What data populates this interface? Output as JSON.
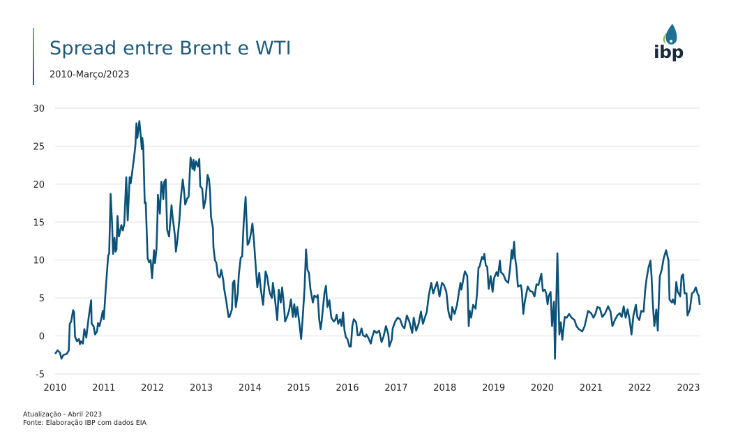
{
  "header": {
    "title": "Spread entre Brent e WTI",
    "subtitle": "2010-Março/2023",
    "logo_text": "ibp"
  },
  "footer": {
    "update": "Atualização - Abril 2023",
    "source": "Fonte: Elaboração IBP com dados EIA"
  },
  "colors": {
    "line": "#0b5178",
    "title": "#1f5a7a",
    "accent_top": "#7dbb42",
    "grid": "#dddddd"
  },
  "chart_data": {
    "type": "line",
    "title": "Spread entre Brent e WTI",
    "subtitle": "2010-Março/2023",
    "xlabel": "",
    "ylabel": "",
    "xlim": [
      2010,
      2023.25
    ],
    "ylim": [
      -5,
      30
    ],
    "grid": true,
    "x_ticks": [
      "2010",
      "2011",
      "2012",
      "2013",
      "2014",
      "2015",
      "2016",
      "2017",
      "2018",
      "2019",
      "2020",
      "2021",
      "2022",
      "2023"
    ],
    "y_ticks": [
      "-5",
      "0",
      "5",
      "10",
      "15",
      "20",
      "25",
      "30"
    ],
    "series": [
      {
        "x": [
          2010.0,
          2010.05,
          2010.1,
          2010.13,
          2010.17,
          2010.24,
          2010.28,
          2010.3,
          2010.33,
          2010.37,
          2010.39,
          2010.41,
          2010.45,
          2010.49,
          2010.51,
          2010.53,
          2010.57,
          2010.6,
          2010.64,
          2010.69,
          2010.74,
          2010.75,
          2010.79,
          2010.82,
          2010.86,
          2010.88,
          2010.91,
          2010.94,
          2010.98,
          2011.0,
          2011.04,
          2011.09,
          2011.11,
          2011.14,
          2011.17,
          2011.19,
          2011.22,
          2011.24,
          2011.26,
          2011.28,
          2011.31,
          2011.36,
          2011.39,
          2011.42,
          2011.46,
          2011.49,
          2011.53,
          2011.55,
          2011.57,
          2011.62,
          2011.65,
          2011.67,
          2011.69,
          2011.73,
          2011.76,
          2011.78,
          2011.79,
          2011.81,
          2011.84,
          2011.86,
          2011.9,
          2011.93,
          2011.96,
          2011.99,
          2012.03,
          2012.05,
          2012.08,
          2012.1,
          2012.11,
          2012.15,
          2012.18,
          2012.2,
          2012.22,
          2012.24,
          2012.27,
          2012.3,
          2012.34,
          2012.39,
          2012.41,
          2012.46,
          2012.48,
          2012.51,
          2012.55,
          2012.58,
          2012.62,
          2012.65,
          2012.67,
          2012.71,
          2012.74,
          2012.78,
          2012.82,
          2012.84,
          2012.86,
          2012.89,
          2012.93,
          2012.96,
          2012.98,
          2013.02,
          2013.05,
          2013.09,
          2013.13,
          2013.16,
          2013.18,
          2013.2,
          2013.24,
          2013.25,
          2013.28,
          2013.31,
          2013.34,
          2013.38,
          2013.41,
          2013.45,
          2013.47,
          2013.51,
          2013.56,
          2013.58,
          2013.63,
          2013.65,
          2013.68,
          2013.71,
          2013.75,
          2013.77,
          2013.81,
          2013.84,
          2013.87,
          2013.91,
          2013.95,
          2013.98,
          2014.01,
          2014.05,
          2014.08,
          2014.13,
          2014.15,
          2014.19,
          2014.22,
          2014.27,
          2014.32,
          2014.35,
          2014.39,
          2014.41,
          2014.45,
          2014.47,
          2014.51,
          2014.56,
          2014.59,
          2014.63,
          2014.66,
          2014.7,
          2014.72,
          2014.76,
          2014.8,
          2014.84,
          2014.88,
          2014.91,
          2014.94,
          2014.97,
          2015.01,
          2015.05,
          2015.08,
          2015.12,
          2015.15,
          2015.18,
          2015.21,
          2015.24,
          2015.29,
          2015.32,
          2015.37,
          2015.39,
          2015.42,
          2015.45,
          2015.47,
          2015.53,
          2015.56,
          2015.59,
          2015.63,
          2015.67,
          2015.72,
          2015.75,
          2015.78,
          2015.81,
          2015.85,
          2015.88,
          2015.91,
          2015.94,
          2015.97,
          2016.0,
          2016.04,
          2016.07,
          2016.1,
          2016.13,
          2016.18,
          2016.21,
          2016.25,
          2016.29,
          2016.32,
          2016.37,
          2016.39,
          2016.44,
          2016.48,
          2016.51,
          2016.55,
          2016.6,
          2016.65,
          2016.7,
          2016.74,
          2016.79,
          2016.84,
          2016.86,
          2016.91,
          2016.93,
          2016.98,
          2017.03,
          2017.08,
          2017.13,
          2017.17,
          2017.22,
          2017.27,
          2017.33,
          2017.36,
          2017.41,
          2017.46,
          2017.51,
          2017.55,
          2017.63,
          2017.67,
          2017.72,
          2017.76,
          2017.79,
          2017.84,
          2017.89,
          2017.94,
          2017.98,
          2018.03,
          2018.07,
          2018.1,
          2018.13,
          2018.15,
          2018.2,
          2018.25,
          2018.29,
          2018.32,
          2018.34,
          2018.38,
          2018.41,
          2018.46,
          2018.49,
          2018.51,
          2018.54,
          2018.58,
          2018.63,
          2018.66,
          2018.69,
          2018.71,
          2018.76,
          2018.79,
          2018.81,
          2018.84,
          2018.87,
          2018.9,
          2018.94,
          2018.98,
          2019.01,
          2019.06,
          2019.09,
          2019.13,
          2019.15,
          2019.2,
          2019.25,
          2019.3,
          2019.34,
          2019.37,
          2019.39,
          2019.42,
          2019.44,
          2019.47,
          2019.5,
          2019.56,
          2019.58,
          2019.61,
          2019.64,
          2019.7,
          2019.75,
          2019.8,
          2019.84,
          2019.88,
          2019.92,
          2019.98,
          2020.01,
          2020.05,
          2020.08,
          2020.11,
          2020.13,
          2020.17,
          2020.2,
          2020.24,
          2020.26,
          2020.31,
          2020.35,
          2020.38,
          2020.41,
          2020.46,
          2020.5,
          2020.55,
          2020.6,
          2020.66,
          2020.7,
          2020.75,
          2020.82,
          2020.87,
          2020.94,
          2021.0,
          2021.05,
          2021.09,
          2021.13,
          2021.18,
          2021.23,
          2021.29,
          2021.35,
          2021.4,
          2021.44,
          2021.49,
          2021.54,
          2021.59,
          2021.63,
          2021.67,
          2021.71,
          2021.75,
          2021.79,
          2021.83,
          2021.87,
          2021.92,
          2021.95,
          2021.99,
          2022.03,
          2022.08,
          2022.11,
          2022.14,
          2022.18,
          2022.22,
          2022.24,
          2022.27,
          2022.3,
          2022.34,
          2022.37,
          2022.41,
          2022.45,
          2022.49,
          2022.54,
          2022.59,
          2022.61,
          2022.66,
          2022.68,
          2022.72,
          2022.75,
          2022.78,
          2022.8,
          2022.83,
          2022.86,
          2022.89,
          2022.92,
          2022.96,
          2022.98,
          2023.03,
          2023.07,
          2023.11,
          2023.15,
          2023.19,
          2023.21,
          2023.23
        ],
        "y": [
          -2.35,
          -1.9,
          -2.2,
          -3.0,
          -2.5,
          -2.35,
          -1.9,
          1.6,
          1.9,
          3.4,
          3.1,
          -0.1,
          -0.7,
          -0.4,
          -1.1,
          -0.7,
          -1.0,
          0.9,
          -0.2,
          2.5,
          4.7,
          1.6,
          1.3,
          0.2,
          0.6,
          1.7,
          1.3,
          2.1,
          3.3,
          2.2,
          6.2,
          10.6,
          10.8,
          18.7,
          14.8,
          10.8,
          12.9,
          11.1,
          11.4,
          15.8,
          13.1,
          14.6,
          13.9,
          14.8,
          20.9,
          15.2,
          20.9,
          20.1,
          21.0,
          23.5,
          25.2,
          28.0,
          26.1,
          28.3,
          26.2,
          24.6,
          26.1,
          24.9,
          17.5,
          17.6,
          10.2,
          9.7,
          10.0,
          7.6,
          11.3,
          9.6,
          11.4,
          15.5,
          18.6,
          16.1,
          20.3,
          19.7,
          18.0,
          20.3,
          20.6,
          14.0,
          13.1,
          17.2,
          15.8,
          13.2,
          11.1,
          12.6,
          15.2,
          18.1,
          20.6,
          18.9,
          17.3,
          18.1,
          18.3,
          23.5,
          22.0,
          23.2,
          21.8,
          23.0,
          22.3,
          23.3,
          19.7,
          19.4,
          16.8,
          18.0,
          21.2,
          20.6,
          19.1,
          15.7,
          14.2,
          11.7,
          10.0,
          9.6,
          8.0,
          7.7,
          8.7,
          7.4,
          6.2,
          4.7,
          2.5,
          2.5,
          3.5,
          7.0,
          7.3,
          3.8,
          5.6,
          8.0,
          10.3,
          10.5,
          14.8,
          18.3,
          12.0,
          12.3,
          13.2,
          14.8,
          12.6,
          8.0,
          6.4,
          8.3,
          6.2,
          4.1,
          8.5,
          7.9,
          6.2,
          5.6,
          5.0,
          7.0,
          5.0,
          2.1,
          6.1,
          4.4,
          6.4,
          3.8,
          1.9,
          2.5,
          3.3,
          4.8,
          2.5,
          4.2,
          2.5,
          3.8,
          1.9,
          -0.4,
          2.2,
          6.2,
          11.4,
          8.7,
          8.3,
          6.2,
          4.4,
          5.3,
          5.1,
          5.4,
          2.2,
          0.9,
          1.9,
          5.7,
          6.6,
          3.8,
          4.7,
          2.4,
          1.9,
          2.1,
          2.8,
          1.6,
          2.2,
          1.3,
          3.1,
          0.7,
          -0.2,
          -0.4,
          -1.4,
          -1.4,
          1.3,
          2.2,
          1.8,
          0.1,
          0.1,
          1.0,
          0.1,
          -0.1,
          0.2,
          -0.4,
          -1.0,
          -0.1,
          0.7,
          0.4,
          0.7,
          -0.8,
          -0.1,
          1.3,
          0.2,
          -1.4,
          -0.5,
          1.0,
          1.9,
          2.4,
          2.2,
          1.3,
          1.0,
          2.7,
          1.9,
          0.4,
          2.4,
          0.7,
          1.6,
          3.2,
          1.6,
          3.2,
          5.3,
          7.0,
          5.6,
          6.2,
          7.1,
          5.2,
          7.0,
          6.7,
          5.8,
          3.3,
          2.5,
          2.1,
          3.8,
          2.9,
          4.1,
          5.8,
          7.0,
          6.1,
          7.5,
          8.5,
          7.9,
          1.3,
          3.3,
          2.4,
          4.1,
          3.6,
          5.6,
          9.0,
          9.1,
          10.4,
          10.1,
          10.8,
          9.3,
          9.1,
          6.2,
          7.9,
          5.8,
          7.6,
          8.4,
          7.9,
          9.9,
          8.4,
          8.1,
          7.3,
          7.0,
          9.0,
          11.3,
          10.2,
          12.4,
          10.4,
          9.0,
          6.5,
          6.7,
          5.9,
          2.9,
          4.5,
          6.5,
          5.9,
          5.8,
          5.2,
          6.8,
          6.7,
          8.2,
          5.9,
          6.1,
          5.6,
          4.2,
          5.2,
          5.8,
          1.3,
          4.5,
          -3.0,
          10.9,
          0.2,
          1.8,
          -0.5,
          2.5,
          2.4,
          2.9,
          2.4,
          2.1,
          1.3,
          0.9,
          0.6,
          1.3,
          3.3,
          3.0,
          2.4,
          2.9,
          3.8,
          3.7,
          2.5,
          3.0,
          3.9,
          3.2,
          1.3,
          2.1,
          2.7,
          3.0,
          2.5,
          3.9,
          2.4,
          3.5,
          2.2,
          0.2,
          2.7,
          4.1,
          2.5,
          2.1,
          3.3,
          3.2,
          5.9,
          7.5,
          9.0,
          9.9,
          8.1,
          4.1,
          1.3,
          3.5,
          0.7,
          7.8,
          8.7,
          10.2,
          11.3,
          9.9,
          4.8,
          4.4,
          4.8,
          4.2,
          7.1,
          5.8,
          5.6,
          5.2,
          7.9,
          8.1,
          5.6,
          5.6,
          2.7,
          3.5,
          5.6,
          5.8,
          6.4,
          5.5,
          5.3,
          4.1
        ]
      }
    ]
  }
}
